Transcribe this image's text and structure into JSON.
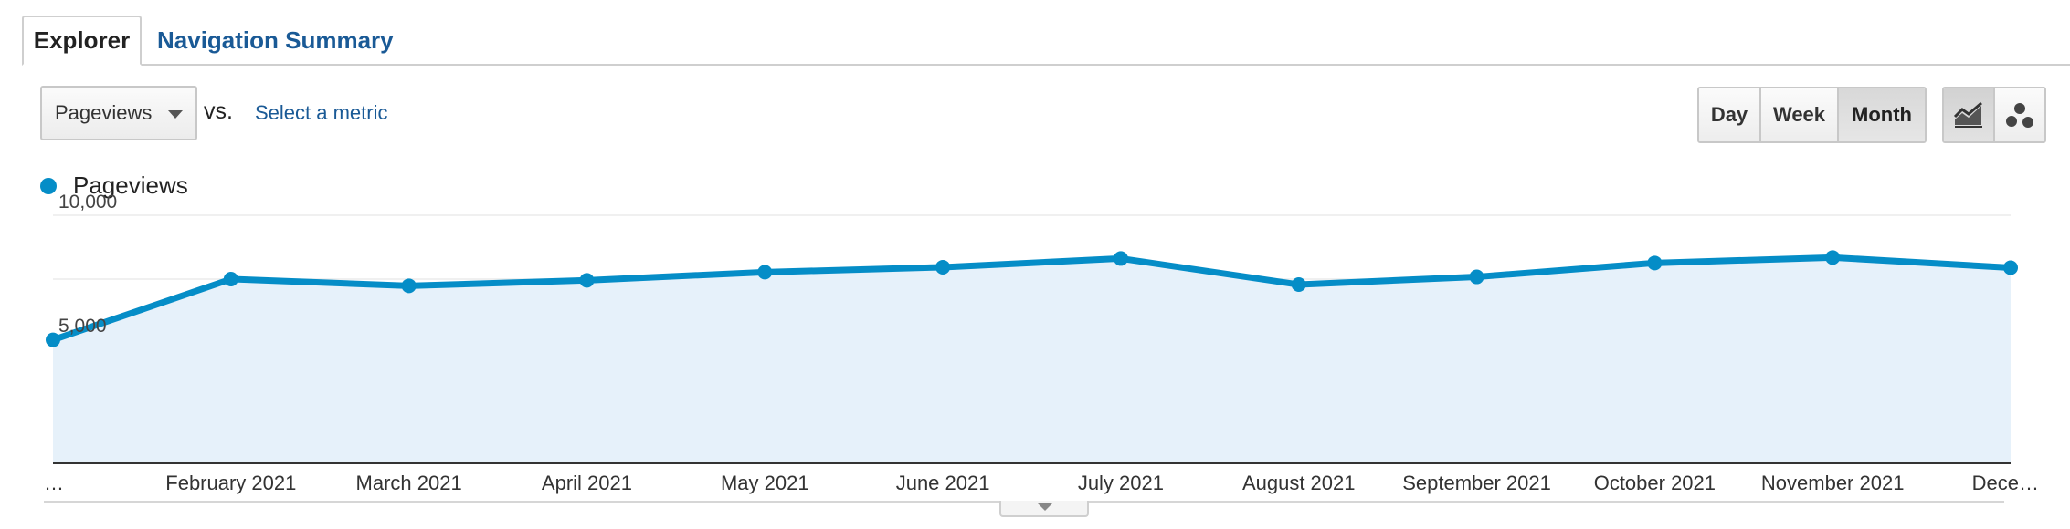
{
  "tabs": {
    "explorer_label": "Explorer",
    "navigation_summary_label": "Navigation Summary"
  },
  "controls": {
    "metric_selected": "Pageviews",
    "vs_label": "vs.",
    "select_metric_label": "Select a metric",
    "period_day": "Day",
    "period_week": "Week",
    "period_month": "Month",
    "period_selected": "Month",
    "chart_type_selected": "line-chart-icon"
  },
  "chart_data": {
    "type": "area",
    "series": [
      {
        "name": "Pageviews",
        "color": "#058dc7",
        "values": [
          5050,
          7500,
          7230,
          7450,
          7780,
          7980,
          8330,
          7280,
          7590,
          8150,
          8370,
          7960
        ]
      }
    ],
    "categories": [
      "…",
      "February 2021",
      "March 2021",
      "April 2021",
      "May 2021",
      "June 2021",
      "July 2021",
      "August 2021",
      "September 2021",
      "October 2021",
      "November 2021",
      "Dece…"
    ],
    "y_ticks": [
      "10,000",
      "5,000"
    ],
    "y_tick_values": [
      10000,
      5000
    ],
    "ylim": [
      0,
      10000
    ],
    "fill_color": "#e6f1fa",
    "grid": true
  }
}
